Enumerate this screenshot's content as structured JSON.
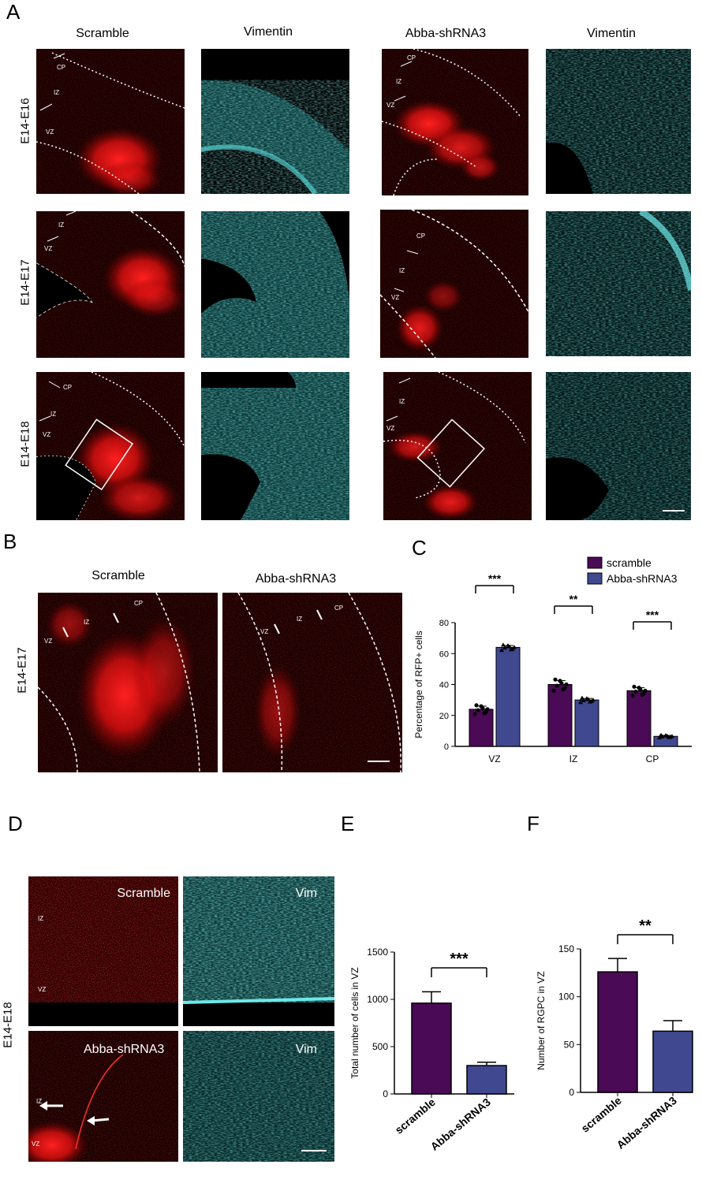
{
  "panel_letters": [
    "A",
    "B",
    "C",
    "D",
    "E",
    "F"
  ],
  "panelA": {
    "col_titles": [
      "Scramble",
      "Vimentin",
      "Abba-shRNA3",
      "Vimentin"
    ],
    "row_labels": [
      "E14-E16",
      "E14-E17",
      "E14-E18"
    ],
    "zone_labels": {
      "cp": "CP",
      "iz": "IZ",
      "vz": "VZ"
    }
  },
  "panelB": {
    "titles": [
      "Scramble",
      "Abba-shRNA3"
    ],
    "row_label": "E14-E17",
    "zone_labels": {
      "vz": "VZ",
      "iz": "IZ",
      "cp": "CP"
    }
  },
  "panelD": {
    "row_label": "E14-E18",
    "labels": {
      "scramble": "Scramble",
      "vim": "Vim",
      "abba": "Abba-shRNA3",
      "iz": "IZ",
      "vz": "VZ"
    }
  },
  "colors": {
    "scramble": "#4b0a55",
    "abba": "#40488f",
    "red_signal": "#ff1a1a",
    "cyan_signal": "#3fd0d0"
  },
  "chart_data": [
    {
      "type": "bar",
      "panel": "C",
      "categories": [
        "VZ",
        "IZ",
        "CP"
      ],
      "ylabel": "Percentage of RFP+ cells",
      "ylim": [
        0,
        80
      ],
      "yticks": [
        0,
        20,
        40,
        60,
        80
      ],
      "legend": [
        "scramble",
        "Abba-shRNA3"
      ],
      "legend_position": "top-right",
      "series": [
        {
          "name": "scramble",
          "values": [
            24,
            40,
            36
          ],
          "errors": [
            2,
            2.5,
            2
          ]
        },
        {
          "name": "Abba-shRNA3",
          "values": [
            64,
            30,
            6.5
          ],
          "errors": [
            1.2,
            1,
            0.6
          ]
        }
      ],
      "significance": [
        "***",
        "**",
        "***"
      ]
    },
    {
      "type": "bar",
      "panel": "E",
      "categories": [
        "scramble",
        "Abba-shRNA3"
      ],
      "ylabel": "Total number of cells in VZ",
      "ylim": [
        0,
        1500
      ],
      "yticks": [
        0,
        500,
        1000,
        1500
      ],
      "values": [
        960,
        300
      ],
      "errors": [
        120,
        35
      ],
      "significance": "***"
    },
    {
      "type": "bar",
      "panel": "F",
      "categories": [
        "scramble",
        "Abba-shRNA3"
      ],
      "ylabel": "Number of RGPC in VZ",
      "ylim": [
        0,
        150
      ],
      "yticks": [
        0,
        50,
        100,
        150
      ],
      "values": [
        126,
        64
      ],
      "errors": [
        14,
        11
      ],
      "significance": "**"
    }
  ]
}
